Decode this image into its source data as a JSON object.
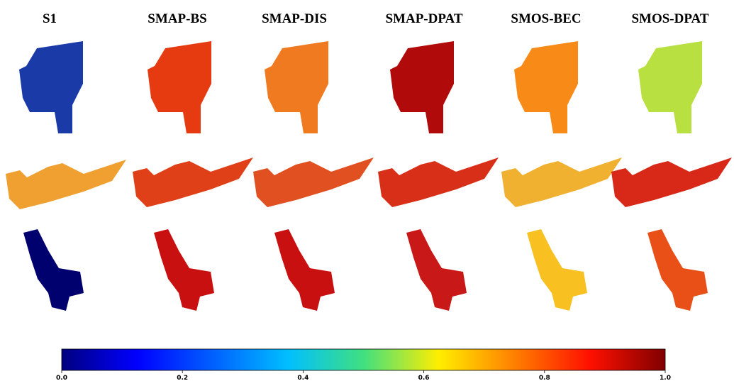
{
  "panels": {
    "columns": [
      "S1",
      "SMAP-BS",
      "SMAP-DIS",
      "SMAP-DPAT",
      "SMOS-BEC",
      "SMOS-DPAT"
    ]
  },
  "colorbar": {
    "lim": [
      0,
      1
    ],
    "ticks": [
      {
        "value": 0,
        "label": "0.0"
      },
      {
        "value": 0.2,
        "label": "0.2"
      },
      {
        "value": 0.4,
        "label": "0.4"
      },
      {
        "value": 0.6,
        "label": "0.6"
      },
      {
        "value": 0.8,
        "label": "0.8"
      },
      {
        "value": 1,
        "label": "1.0"
      }
    ]
  }
}
